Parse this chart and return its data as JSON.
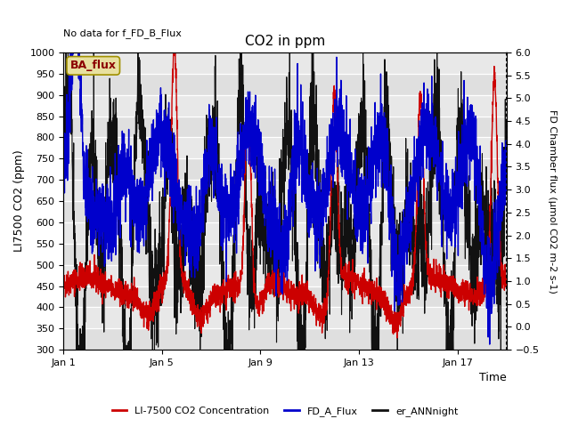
{
  "title": "CO2 in ppm",
  "no_data_text": "No data for f_FD_B_Flux",
  "ylabel_left": "LI7500 CO2 (ppm)",
  "ylabel_right": "FD Chamber flux (μmol CO2 m-2 s-1)",
  "xlabel": "Time",
  "ylim_left": [
    300,
    1000
  ],
  "ylim_right": [
    -0.5,
    6.0
  ],
  "yticks_left": [
    300,
    350,
    400,
    450,
    500,
    550,
    600,
    650,
    700,
    750,
    800,
    850,
    900,
    950,
    1000
  ],
  "yticks_right": [
    -0.5,
    0.0,
    0.5,
    1.0,
    1.5,
    2.0,
    2.5,
    3.0,
    3.5,
    4.0,
    4.5,
    5.0,
    5.5,
    6.0
  ],
  "xtick_labels": [
    "Jan 1",
    "Jan 5",
    "Jan 9",
    "Jan 13",
    "Jan 17"
  ],
  "xtick_positions": [
    0,
    4,
    8,
    12,
    16
  ],
  "legend_box_label": "BA_flux",
  "legend_entries": [
    {
      "label": "LI-7500 CO2 Concentration",
      "color": "#cc0000",
      "lw": 1.0
    },
    {
      "label": "FD_A_Flux",
      "color": "#0000cc",
      "lw": 1.0
    },
    {
      "label": "er_ANNnight",
      "color": "#111111",
      "lw": 0.8
    }
  ],
  "plot_bg": "#e8e8e8",
  "figsize": [
    6.4,
    4.8
  ],
  "dpi": 100
}
